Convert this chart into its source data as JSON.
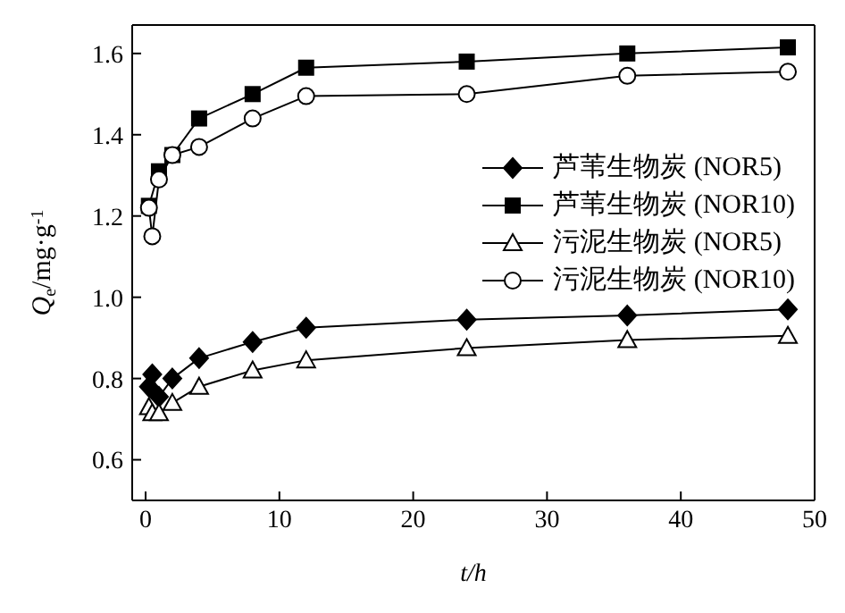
{
  "chart_data": {
    "type": "line",
    "xlabel": "t/h",
    "ylabel": "Q$_{e}$/mg·g$^{-1}$",
    "x": [
      0.25,
      0.5,
      1,
      2,
      4,
      8,
      12,
      24,
      36,
      48
    ],
    "series": [
      {
        "name": "芦苇生物炭 (NOR5)",
        "color": "#000000",
        "marker": "diamond",
        "values": [
          0.78,
          0.81,
          0.755,
          0.8,
          0.85,
          0.89,
          0.925,
          0.945,
          0.955,
          0.97
        ]
      },
      {
        "name": "芦苇生物炭 (NOR10)",
        "color": "#000000",
        "marker": "square",
        "x": [
          0.25,
          1,
          2,
          4,
          8,
          12,
          24,
          36,
          48
        ],
        "values": [
          1.225,
          1.31,
          1.35,
          1.44,
          1.5,
          1.565,
          1.58,
          1.6,
          1.615
        ]
      },
      {
        "name": "污泥生物炭 (NOR5)",
        "color": "#000000",
        "marker": "triangle",
        "values": [
          0.73,
          0.715,
          0.715,
          0.74,
          0.78,
          0.82,
          0.845,
          0.875,
          0.895,
          0.905
        ]
      },
      {
        "name": "污泥生物炭 (NOR10)",
        "color": "#000000",
        "marker": "circle",
        "values": [
          1.22,
          1.15,
          1.29,
          1.35,
          1.37,
          1.44,
          1.495,
          1.5,
          1.545,
          1.555
        ]
      }
    ],
    "xlim": [
      -1,
      50
    ],
    "xticks": [
      0,
      10,
      20,
      30,
      40,
      50
    ],
    "ylim": [
      0.5,
      1.67
    ],
    "yticks": [
      0.6,
      0.8,
      {
        "value": 1.0,
        "label": "1.0"
      },
      1.2,
      1.4,
      1.6
    ],
    "legend": "right",
    "line_style": "solid",
    "grid": false
  }
}
